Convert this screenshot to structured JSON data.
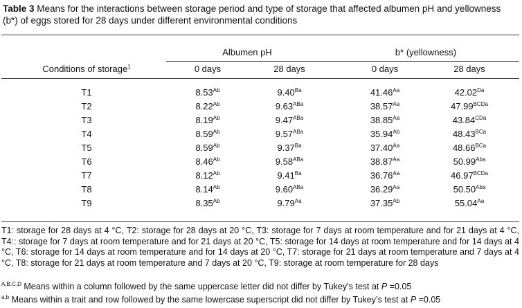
{
  "caption": {
    "label": "Table 3",
    "text": "Means for the interactions between storage period and type of storage that affected albumen pH and yellowness (b*) of eggs stored for 28 days under different environmental conditions"
  },
  "table": {
    "groups": [
      "Albumen pH",
      "b* (yellowness)"
    ],
    "row_header": {
      "text": "Conditions of storage",
      "sup": "1"
    },
    "columns": [
      "0 days",
      "28 days",
      "0 days",
      "28 days"
    ],
    "rows": [
      {
        "label": "T1",
        "cells": [
          {
            "v": "8.53",
            "s": "Ab"
          },
          {
            "v": "9.40",
            "s": "Ba"
          },
          {
            "v": "41.46",
            "s": "Aa"
          },
          {
            "v": "42.02",
            "s": "Da"
          }
        ]
      },
      {
        "label": "T2",
        "cells": [
          {
            "v": "8.22",
            "s": "Ab"
          },
          {
            "v": "9.63",
            "s": "ABa"
          },
          {
            "v": "38.57",
            "s": "Aa"
          },
          {
            "v": "47.99",
            "s": "BCDa"
          }
        ]
      },
      {
        "label": "T3",
        "cells": [
          {
            "v": "8.19",
            "s": "Ab"
          },
          {
            "v": "9.47",
            "s": "ABa"
          },
          {
            "v": "38.85",
            "s": "Aa"
          },
          {
            "v": "43.84",
            "s": "CDa"
          }
        ]
      },
      {
        "label": "T4",
        "cells": [
          {
            "v": "8.59",
            "s": "Ab"
          },
          {
            "v": "9.57",
            "s": "ABa"
          },
          {
            "v": "35.94",
            "s": "Ab"
          },
          {
            "v": "48.43",
            "s": "BCa"
          }
        ]
      },
      {
        "label": "T5",
        "cells": [
          {
            "v": "8.59",
            "s": "Ab"
          },
          {
            "v": "9.37",
            "s": "Ba"
          },
          {
            "v": "37.40",
            "s": "Aa"
          },
          {
            "v": "48.66",
            "s": "BCa"
          }
        ]
      },
      {
        "label": "T6",
        "cells": [
          {
            "v": "8.46",
            "s": "Ab"
          },
          {
            "v": "9.58",
            "s": "ABa"
          },
          {
            "v": "38.87",
            "s": "Aa"
          },
          {
            "v": "50.99",
            "s": "Aba"
          }
        ]
      },
      {
        "label": "T7",
        "cells": [
          {
            "v": "8.12",
            "s": "Ab"
          },
          {
            "v": "9.41",
            "s": "Ba"
          },
          {
            "v": "36.76",
            "s": "Aa"
          },
          {
            "v": "46.97",
            "s": "BCDa"
          }
        ]
      },
      {
        "label": "T8",
        "cells": [
          {
            "v": "8.14",
            "s": "Ab"
          },
          {
            "v": "9.60",
            "s": "ABa"
          },
          {
            "v": "36.29",
            "s": "Aa"
          },
          {
            "v": "50.50",
            "s": "Aba"
          }
        ]
      },
      {
        "label": "T9",
        "cells": [
          {
            "v": "8.35",
            "s": "Ab"
          },
          {
            "v": "9.79",
            "s": "Aa"
          },
          {
            "v": "37.35",
            "s": "Ab"
          },
          {
            "v": "55.04",
            "s": "Aa"
          }
        ]
      }
    ]
  },
  "footnotes": {
    "conditions": "T1: storage for 28 days at 4 °C, T2: storage for 28 days at 20 °C, T3: storage for 7 days at room temperature and for 21 days at 4 °C, T4:: storage for 7 days at room temperature and for 21 days at 20 °C, T5: storage for 14 days at room temperature and for 14 days at 4 °C, T6: storage for 14 days at room temperature and for 14 days at 20 °C, T7: storage for 21 days at room temperature and 7 days at 4 °C, T8: storage for 21 days at room temperature and 7 days at 20 °C, T9: storage at room temperature for 28 days",
    "notes": [
      {
        "marker": "A,B,C,D",
        "text": " Means within a column followed by the same uppercase letter did not differ by Tukey’s test at ",
        "p": "P",
        "tail": " =0.05"
      },
      {
        "marker": "a,b",
        "text": " Means within a trait and row followed by the same lowercase superscript did not differ by Tukey’s test at ",
        "p": "P",
        "tail": " =0.05"
      }
    ]
  }
}
